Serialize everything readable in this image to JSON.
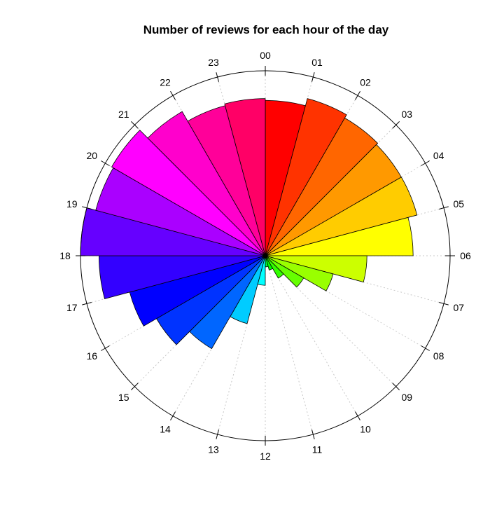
{
  "chart_data": {
    "type": "bar",
    "subtype": "polar-rose",
    "title": "Number of reviews for each hour of the day",
    "categories": [
      "00",
      "01",
      "02",
      "03",
      "04",
      "05",
      "06",
      "07",
      "08",
      "09",
      "10",
      "11",
      "12",
      "13",
      "14",
      "15",
      "16",
      "17",
      "18",
      "19",
      "20",
      "21",
      "22",
      "23"
    ],
    "values": [
      0.84,
      0.88,
      0.86,
      0.85,
      0.85,
      0.8,
      0.55,
      0.38,
      0.24,
      0.14,
      0.08,
      0.06,
      0.16,
      0.38,
      0.58,
      0.68,
      0.76,
      0.9,
      1.0,
      0.95,
      0.96,
      0.9,
      0.84,
      0.85
    ],
    "ylim": [
      0,
      1
    ],
    "colors": [
      "#FF0000",
      "#FF3300",
      "#FF6600",
      "#FF9900",
      "#FFCC00",
      "#FFFF00",
      "#CCFF00",
      "#99FF00",
      "#66FF00",
      "#33FF00",
      "#00FF00",
      "#00FF33",
      "#00FFFF",
      "#00CCFF",
      "#0066FF",
      "#0033FF",
      "#0000FF",
      "#3300FF",
      "#6600FF",
      "#AA00FF",
      "#FF00FF",
      "#FF00CC",
      "#FF0099",
      "#FF0066"
    ],
    "grid": true,
    "legend": "none"
  }
}
